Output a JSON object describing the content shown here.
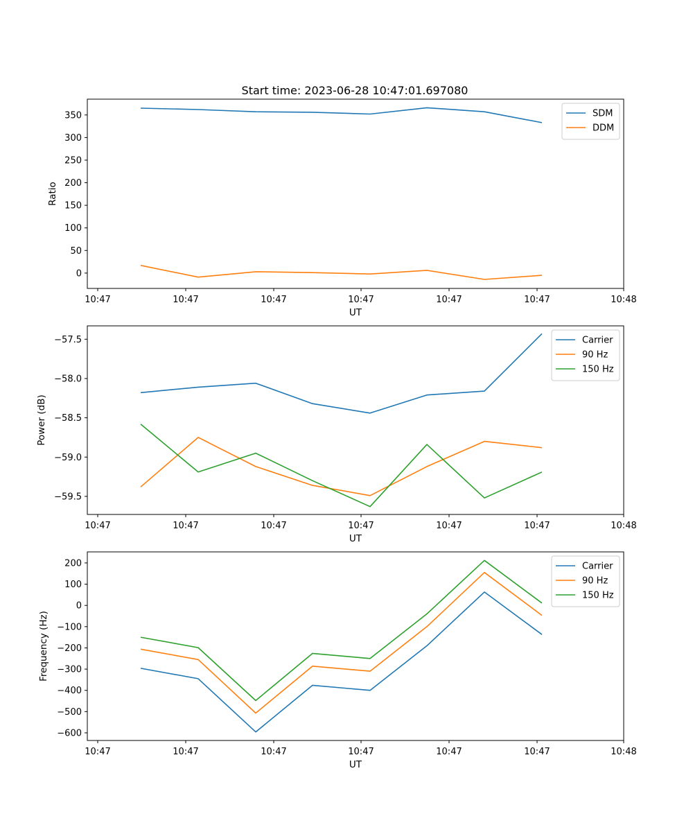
{
  "figure": {
    "title": "Start time: 2023-06-28 10:47:01.697080"
  },
  "colors": {
    "blue": "#1f77b4",
    "orange": "#ff7f0e",
    "green": "#2ca02c"
  },
  "chart_data": [
    {
      "type": "line",
      "title": "Start time: 2023-06-28 10:47:01.697080",
      "xlabel": "UT",
      "ylabel": "Ratio",
      "x_tick_labels": [
        "10:47",
        "10:47",
        "10:47",
        "10:47",
        "10:47",
        "10:48"
      ],
      "y_ticks": [
        0,
        50,
        100,
        150,
        200,
        250,
        300,
        350
      ],
      "ylim": [
        -34,
        385
      ],
      "legend": "top-right",
      "series": [
        {
          "name": "SDM",
          "color": "#1f77b4",
          "values": [
            365,
            362,
            357,
            356,
            352,
            366,
            357,
            333
          ]
        },
        {
          "name": "DDM",
          "color": "#ff7f0e",
          "values": [
            17,
            -9,
            3,
            1,
            -2,
            6,
            -14,
            -5
          ]
        }
      ]
    },
    {
      "type": "line",
      "title": "",
      "xlabel": "UT",
      "ylabel": "Power (dB)",
      "x_tick_labels": [
        "10:47",
        "10:47",
        "10:47",
        "10:47",
        "10:47",
        "10:48"
      ],
      "y_ticks": [
        -59.5,
        -59.0,
        -58.5,
        -58.0,
        -57.5
      ],
      "y_tick_labels": [
        "−59.5",
        "−59.0",
        "−58.5",
        "−58.0",
        "−57.5"
      ],
      "ylim": [
        -59.73,
        -57.33
      ],
      "legend": "top-right",
      "series": [
        {
          "name": "Carrier",
          "color": "#1f77b4",
          "values": [
            -58.18,
            -58.11,
            -58.06,
            -58.32,
            -58.44,
            -58.21,
            -58.16,
            -57.43
          ]
        },
        {
          "name": "90 Hz",
          "color": "#ff7f0e",
          "values": [
            -59.38,
            -58.75,
            -59.12,
            -59.36,
            -59.49,
            -59.12,
            -58.8,
            -58.88
          ]
        },
        {
          "name": "150 Hz",
          "color": "#2ca02c",
          "values": [
            -58.58,
            -59.19,
            -58.95,
            -59.3,
            -59.63,
            -58.84,
            -59.52,
            -59.19
          ]
        }
      ]
    },
    {
      "type": "line",
      "title": "",
      "xlabel": "UT",
      "ylabel": "Frequency (Hz)",
      "x_tick_labels": [
        "10:47",
        "10:47",
        "10:47",
        "10:47",
        "10:47",
        "10:48"
      ],
      "y_ticks": [
        -600,
        -500,
        -400,
        -300,
        -200,
        -100,
        0,
        100,
        200
      ],
      "y_tick_labels": [
        "−600",
        "−500",
        "−400",
        "−300",
        "−200",
        "−100",
        "0",
        "100",
        "200"
      ],
      "ylim": [
        -636,
        252
      ],
      "legend": "top-right",
      "series": [
        {
          "name": "Carrier",
          "color": "#1f77b4",
          "values": [
            -296,
            -345,
            -596,
            -376,
            -400,
            -190,
            63,
            -137
          ]
        },
        {
          "name": "90 Hz",
          "color": "#ff7f0e",
          "values": [
            -206,
            -255,
            -507,
            -286,
            -310,
            -100,
            155,
            -47
          ]
        },
        {
          "name": "150 Hz",
          "color": "#2ca02c",
          "values": [
            -150,
            -199,
            -448,
            -226,
            -250,
            -40,
            212,
            11
          ]
        }
      ]
    }
  ]
}
